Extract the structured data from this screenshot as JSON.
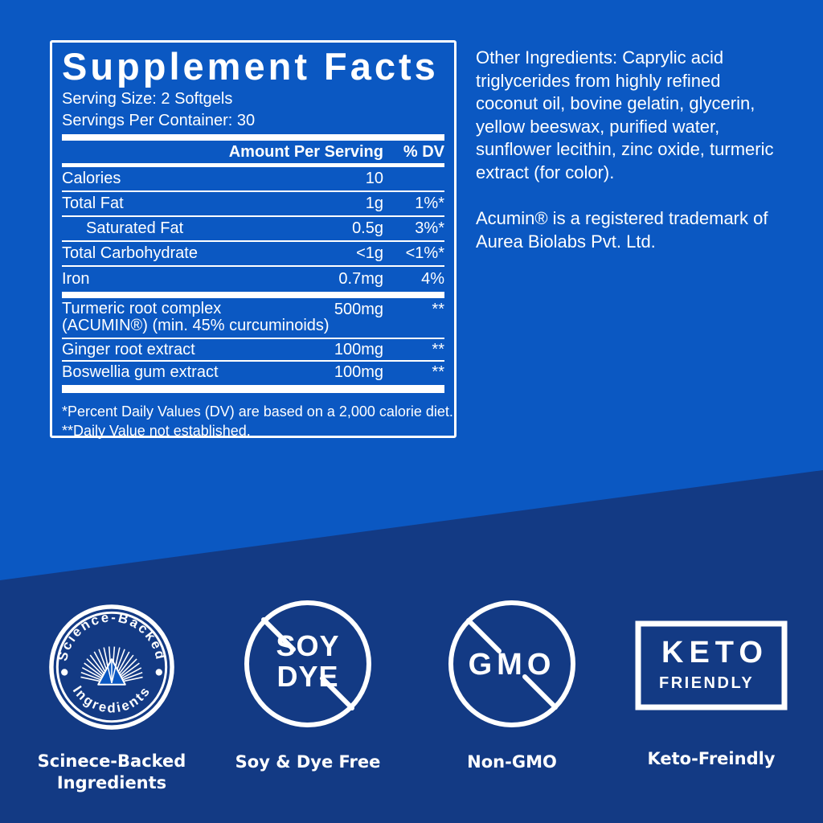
{
  "page": {
    "background_top_color": "#0B58C2",
    "background_bottom_color": "#133A84",
    "text_color": "#FFFFFF"
  },
  "panel": {
    "title": "Supplement Facts",
    "serving_size": "Serving Size: 2 Softgels",
    "servings_per_container": "Servings Per Container: 30",
    "columns": {
      "amount": "Amount Per Serving",
      "dv": "% DV"
    },
    "rows": [
      {
        "label": "Calories",
        "amount": "10",
        "dv": ""
      },
      {
        "label": "Total Fat",
        "amount": "1g",
        "dv": "1%*"
      },
      {
        "label": "Saturated Fat",
        "amount": "0.5g",
        "dv": "3%*"
      },
      {
        "label": "Total Carbohydrate",
        "amount": "<1g",
        "dv": "<1%*"
      },
      {
        "label": "Iron",
        "amount": "0.7mg",
        "dv": "4%"
      }
    ],
    "botanical_rows": [
      {
        "label": "Turmeric root complex",
        "label2": "(ACUMIN®) (min. 45% curcuminoids)",
        "amount": "500mg",
        "dv": "**"
      },
      {
        "label": "Ginger root extract",
        "amount": "100mg",
        "dv": "**"
      },
      {
        "label": "Boswellia gum extract",
        "amount": "100mg",
        "dv": "**"
      }
    ],
    "footnote1": "*Percent Daily Values (DV) are based on a 2,000 calorie diet.",
    "footnote2": "**Daily Value not established."
  },
  "side_text": {
    "other_ingredients_lines": [
      "Other Ingredients: Caprylic acid",
      "triglycerides from highly refined",
      "coconut oil, bovine gelatin, glycerin,",
      "yellow beeswax, purified water,",
      "sunflower lecithin, zinc oxide, turmeric",
      "extract (for color)."
    ],
    "trademark_lines": [
      "Acumin® is a registered trademark of",
      "Aurea Biolabs Pvt. Ltd."
    ]
  },
  "badges": {
    "science": {
      "arc_top": "Science-Backed",
      "arc_bottom": "Ingredients",
      "caption_line1": "Scinece-Backed",
      "caption_line2": "Ingredients"
    },
    "soy_dye": {
      "word1": "SOY",
      "word2": "DYE",
      "caption": "Soy & Dye Free"
    },
    "gmo": {
      "word": "GMO",
      "caption": "Non-GMO"
    },
    "keto": {
      "word1": "KETO",
      "word2": "FRIENDLY",
      "caption": "Keto-Freindly"
    }
  }
}
